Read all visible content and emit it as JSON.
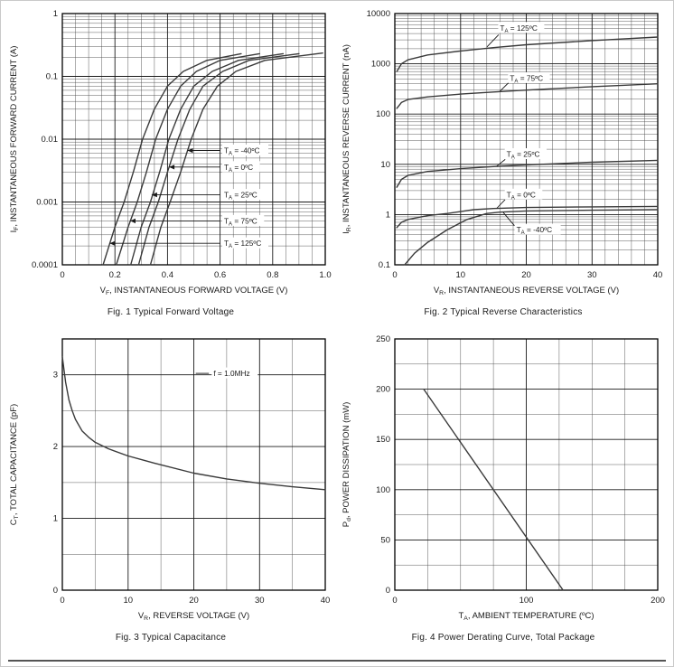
{
  "colors": {
    "curve": "#3a3a3a",
    "grid_minor": "#4a4a4a",
    "grid_major": "#1a1a1a",
    "frame": "#000000",
    "text": "#1a1a1a"
  },
  "chart_data": [
    {
      "id": "fig1",
      "type": "line",
      "caption": "Fig. 1  Typical Forward Voltage",
      "xlabel": "V~F~, INSTANTANEOUS FORWARD VOLTAGE (V)",
      "ylabel": "I~F~, INSTANTANEOUS FORWARD CURRENT (A)",
      "xscale": "linear",
      "yscale": "log",
      "xlim": [
        0,
        1
      ],
      "ylim": [
        0.0001,
        1
      ],
      "xticks": [
        0,
        0.2,
        0.4,
        0.6,
        0.8,
        1
      ],
      "xtick_labels": [
        "0",
        "0.2",
        "0.4",
        "0.6",
        "0.8",
        "1.0"
      ],
      "yticks": [
        0.0001,
        0.001,
        0.01,
        0.1,
        1
      ],
      "ytick_labels": [
        "0.0001",
        "0.001",
        "0.01",
        "0.1",
        "1"
      ],
      "xgrid": {
        "minor": 0.05,
        "major": 0.2
      },
      "series": [
        {
          "name": "TA = 125C",
          "points": [
            [
              0.155,
              0.0001
            ],
            [
              0.2,
              0.0004
            ],
            [
              0.235,
              0.001
            ],
            [
              0.27,
              0.003
            ],
            [
              0.305,
              0.01
            ],
            [
              0.35,
              0.03
            ],
            [
              0.4,
              0.07
            ],
            [
              0.46,
              0.12
            ],
            [
              0.55,
              0.18
            ],
            [
              0.68,
              0.23
            ]
          ]
        },
        {
          "name": "TA = 75C",
          "points": [
            [
              0.205,
              0.0001
            ],
            [
              0.25,
              0.0004
            ],
            [
              0.285,
              0.001
            ],
            [
              0.32,
              0.003
            ],
            [
              0.355,
              0.01
            ],
            [
              0.4,
              0.03
            ],
            [
              0.45,
              0.07
            ],
            [
              0.51,
              0.12
            ],
            [
              0.6,
              0.18
            ],
            [
              0.75,
              0.23
            ]
          ]
        },
        {
          "name": "TA = 25C",
          "points": [
            [
              0.26,
              0.0001
            ],
            [
              0.3,
              0.0004
            ],
            [
              0.335,
              0.001
            ],
            [
              0.37,
              0.003
            ],
            [
              0.405,
              0.01
            ],
            [
              0.45,
              0.03
            ],
            [
              0.5,
              0.07
            ],
            [
              0.57,
              0.12
            ],
            [
              0.67,
              0.18
            ],
            [
              0.84,
              0.23
            ]
          ]
        },
        {
          "name": "TA = 0C",
          "points": [
            [
              0.29,
              0.0001
            ],
            [
              0.33,
              0.0004
            ],
            [
              0.365,
              0.001
            ],
            [
              0.4,
              0.003
            ],
            [
              0.44,
              0.01
            ],
            [
              0.485,
              0.03
            ],
            [
              0.535,
              0.07
            ],
            [
              0.61,
              0.12
            ],
            [
              0.71,
              0.18
            ],
            [
              0.9,
              0.23
            ]
          ]
        },
        {
          "name": "TA = -40C",
          "points": [
            [
              0.335,
              0.0001
            ],
            [
              0.375,
              0.0004
            ],
            [
              0.41,
              0.001
            ],
            [
              0.45,
              0.003
            ],
            [
              0.49,
              0.01
            ],
            [
              0.535,
              0.03
            ],
            [
              0.59,
              0.07
            ],
            [
              0.66,
              0.12
            ],
            [
              0.77,
              0.18
            ],
            [
              0.99,
              0.235
            ]
          ]
        }
      ],
      "annotations": [
        {
          "text": "T~A~ = -40ºC",
          "tx": 0.615,
          "ty": 0.0066,
          "line": {
            "x1": 0.6,
            "y1": 0.0066,
            "x2": 0.476,
            "y2": 0.0066,
            "head": true
          }
        },
        {
          "text": "T~A~ = 0ºC",
          "tx": 0.615,
          "ty": 0.0036,
          "line": {
            "x1": 0.6,
            "y1": 0.0036,
            "x2": 0.406,
            "y2": 0.0036,
            "head": true
          }
        },
        {
          "text": "T~A~ = 25ºC",
          "tx": 0.615,
          "ty": 0.0013,
          "line": {
            "x1": 0.6,
            "y1": 0.0013,
            "x2": 0.34,
            "y2": 0.0013,
            "head": true
          }
        },
        {
          "text": "T~A~ = 75ºC",
          "tx": 0.615,
          "ty": 0.0005,
          "line": {
            "x1": 0.6,
            "y1": 0.0005,
            "x2": 0.258,
            "y2": 0.0005,
            "head": true
          }
        },
        {
          "text": "T~A~ = 125ºC",
          "tx": 0.615,
          "ty": 0.00022,
          "line": {
            "x1": 0.6,
            "y1": 0.00022,
            "x2": 0.18,
            "y2": 0.00022,
            "head": true
          }
        }
      ]
    },
    {
      "id": "fig2",
      "type": "line",
      "caption": "Fig. 2  Typical Reverse Characteristics",
      "xlabel": "V~R~, INSTANTANEOUS REVERSE VOLTAGE (V)",
      "ylabel": "I~R~, INSTANTANEOUS REVERSE CURRENT (nA)",
      "xscale": "linear",
      "yscale": "log",
      "xlim": [
        0,
        40
      ],
      "ylim": [
        0.1,
        10000
      ],
      "xticks": [
        0,
        10,
        20,
        30,
        40
      ],
      "xtick_labels": [
        "0",
        "10",
        "20",
        "30",
        "40"
      ],
      "yticks": [
        0.1,
        1,
        10,
        100,
        1000,
        10000
      ],
      "ytick_labels": [
        "0.1",
        "1",
        "10",
        "100",
        "1000",
        "10000"
      ],
      "xgrid": {
        "minor": 2,
        "major": 10
      },
      "series": [
        {
          "name": "TA = 125C",
          "points": [
            [
              0.3,
              700
            ],
            [
              1,
              1000
            ],
            [
              2,
              1200
            ],
            [
              5,
              1500
            ],
            [
              10,
              1800
            ],
            [
              15,
              2100
            ],
            [
              20,
              2400
            ],
            [
              30,
              2900
            ],
            [
              40,
              3400
            ]
          ]
        },
        {
          "name": "TA = 75C",
          "points": [
            [
              0.3,
              130
            ],
            [
              1,
              170
            ],
            [
              2,
              195
            ],
            [
              5,
              220
            ],
            [
              10,
              250
            ],
            [
              15,
              275
            ],
            [
              20,
              300
            ],
            [
              30,
              350
            ],
            [
              40,
              400
            ]
          ]
        },
        {
          "name": "TA = 25C",
          "points": [
            [
              0.3,
              3.5
            ],
            [
              1,
              5
            ],
            [
              2,
              6
            ],
            [
              5,
              7.2
            ],
            [
              10,
              8.2
            ],
            [
              15,
              9
            ],
            [
              20,
              9.7
            ],
            [
              30,
              11
            ],
            [
              40,
              12
            ]
          ]
        },
        {
          "name": "TA = 0C",
          "points": [
            [
              0.3,
              0.55
            ],
            [
              1,
              0.7
            ],
            [
              2,
              0.8
            ],
            [
              5,
              0.95
            ],
            [
              8,
              1.05
            ],
            [
              12,
              1.25
            ],
            [
              15,
              1.32
            ],
            [
              20,
              1.38
            ],
            [
              30,
              1.42
            ],
            [
              40,
              1.45
            ]
          ]
        },
        {
          "name": "TA = -40C",
          "points": [
            [
              1.5,
              0.1
            ],
            [
              3,
              0.17
            ],
            [
              5,
              0.28
            ],
            [
              8,
              0.5
            ],
            [
              11,
              0.8
            ],
            [
              14,
              1.05
            ],
            [
              16,
              1.12
            ],
            [
              20,
              1.18
            ],
            [
              30,
              1.22
            ],
            [
              40,
              1.25
            ]
          ]
        }
      ],
      "annotations": [
        {
          "text": "T~A~ = 125ºC",
          "tx": 16,
          "ty": 5200,
          "line": {
            "x1": 15.8,
            "y1": 3800,
            "x2": 14,
            "y2": 2150,
            "head": false
          }
        },
        {
          "text": "T~A~ = 75ºC",
          "tx": 17.5,
          "ty": 520,
          "line": {
            "x1": 17.3,
            "y1": 420,
            "x2": 16,
            "y2": 285,
            "head": false
          }
        },
        {
          "text": "T~A~ = 25ºC",
          "tx": 17,
          "ty": 16,
          "line": {
            "x1": 16.8,
            "y1": 12.5,
            "x2": 15.5,
            "y2": 9.2,
            "head": false
          }
        },
        {
          "text": "T~A~ = 0ºC",
          "tx": 17,
          "ty": 2.5,
          "line": {
            "x1": 16.8,
            "y1": 2.0,
            "x2": 15.5,
            "y2": 1.33,
            "head": false
          }
        },
        {
          "text": "T~A~ = -40ºC",
          "tx": 18.5,
          "ty": 0.5,
          "line": {
            "x1": 18.2,
            "y1": 0.6,
            "x2": 16.5,
            "y2": 1.1,
            "head": false
          }
        }
      ]
    },
    {
      "id": "fig3",
      "type": "line",
      "caption": "Fig. 3  Typical Capacitance",
      "xlabel": "V~R~, REVERSE VOLTAGE (V)",
      "ylabel": "C~T~, TOTAL CAPACITANCE (pF)",
      "xscale": "linear",
      "yscale": "linear",
      "xlim": [
        0,
        40
      ],
      "ylim": [
        0,
        3.5
      ],
      "xticks": [
        0,
        10,
        20,
        30,
        40
      ],
      "xtick_labels": [
        "0",
        "10",
        "20",
        "30",
        "40"
      ],
      "yticks": [
        0,
        1,
        2,
        3
      ],
      "ytick_labels": [
        "0",
        "1",
        "2",
        "3"
      ],
      "xgrid": {
        "minor": 5,
        "major": 10
      },
      "ygrid": {
        "minor": 0.5,
        "major": 1
      },
      "series": [
        {
          "name": "CT",
          "points": [
            [
              0,
              3.25
            ],
            [
              0.5,
              2.9
            ],
            [
              1,
              2.65
            ],
            [
              1.5,
              2.5
            ],
            [
              2,
              2.38
            ],
            [
              3,
              2.22
            ],
            [
              4,
              2.13
            ],
            [
              5,
              2.06
            ],
            [
              7,
              1.97
            ],
            [
              10,
              1.87
            ],
            [
              14,
              1.77
            ],
            [
              20,
              1.63
            ],
            [
              25,
              1.55
            ],
            [
              30,
              1.49
            ],
            [
              35,
              1.44
            ],
            [
              40,
              1.4
            ]
          ]
        }
      ],
      "annotations": [
        {
          "text": "f = 1.0MHz",
          "tx": 23,
          "ty": 3.02,
          "line": {
            "x1": 20.3,
            "y1": 3.02,
            "x2": 22.3,
            "y2": 3.02,
            "head": false
          }
        }
      ]
    },
    {
      "id": "fig4",
      "type": "line",
      "caption": "Fig. 4  Power Derating Curve, Total Package",
      "xlabel": "T~A~, AMBIENT TEMPERATURE (ºC)",
      "ylabel": "P~d~, POWER DISSIPATION (mW)",
      "xscale": "linear",
      "yscale": "linear",
      "xlim": [
        0,
        200
      ],
      "ylim": [
        0,
        250
      ],
      "xticks": [
        0,
        100,
        200
      ],
      "xtick_labels": [
        "0",
        "100",
        "200"
      ],
      "yticks": [
        0,
        50,
        100,
        150,
        200,
        250
      ],
      "ytick_labels": [
        "0",
        "50",
        "100",
        "150",
        "200",
        "250"
      ],
      "xgrid": {
        "minor": 25,
        "major": 100
      },
      "ygrid": {
        "minor": 25,
        "major": 50
      },
      "series": [
        {
          "name": "Pd derating",
          "points": [
            [
              22,
              200
            ],
            [
              128,
              0
            ]
          ]
        }
      ],
      "annotations": []
    }
  ]
}
